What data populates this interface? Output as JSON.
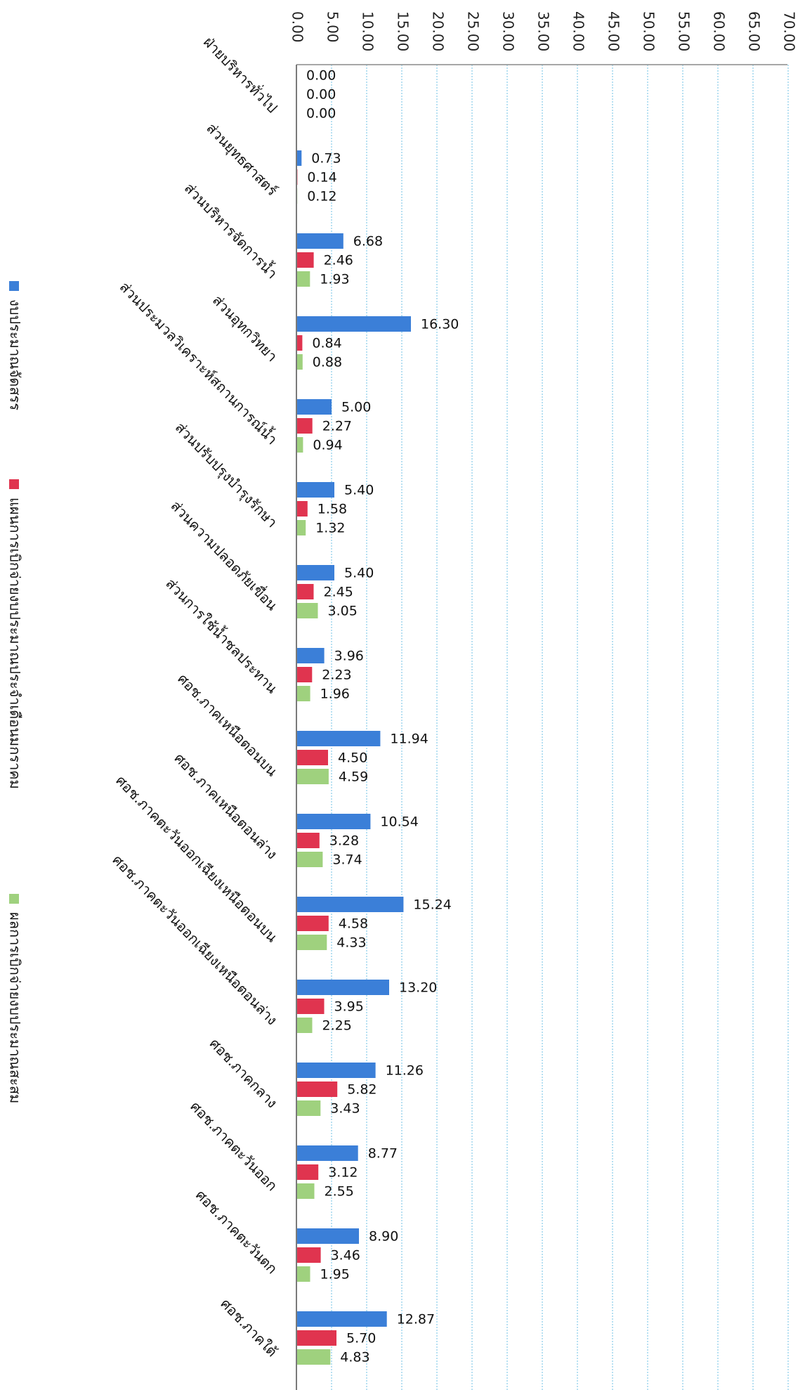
{
  "chart_data": {
    "type": "bar",
    "orientation": "horizontal",
    "categories": [
      "ฝ่ายบริหารทั่วไป",
      "ส่วนยุทธศาสตร์",
      "ส่วนบริหารจัดการน้ำ",
      "ส่วนอุทกวิทยา",
      "ส่วนประมวลวิเคราะห์สถานการณ์น้ำ",
      "ส่วนปรับปรุงบำรุงรักษา",
      "ส่วนความปลอดภัยเขื่อน",
      "ส่วนการใช้น้ำชลประทาน",
      "ศอช.ภาคเหนือตอนบน",
      "ศอช.ภาคเหนือตอนล่าง",
      "ศอช.ภาคตะวันออกเฉียงเหนือตอนบน",
      "ศอช.ภาคตะวันออกเฉียงเหนือตอนล่าง",
      "ศอช.ภาคกลาง",
      "ศอช.ภาคตะวันออก",
      "ศอช.ภาคตะวันตก",
      "ศอช.ภาคใต้"
    ],
    "series": [
      {
        "name": "งบประมาณจัดสรร",
        "color": "#3b7fd8",
        "values": [
          0.0,
          0.73,
          6.68,
          16.3,
          5.0,
          5.4,
          5.4,
          3.96,
          11.94,
          10.54,
          15.24,
          13.2,
          11.26,
          8.77,
          8.9,
          12.87
        ],
        "labels": [
          "0.00",
          "0.73",
          "6.68",
          "16.30",
          "5.00",
          "5.40",
          "5.40",
          "3.96",
          "11.94",
          "10.54",
          "15.24",
          "13.20",
          "11.26",
          "8.77",
          "8.90",
          "12.87"
        ]
      },
      {
        "name": "แผนการเบิกจ่ายงบประมาณประจำเดือนมกราคม",
        "color": "#e0344f",
        "values": [
          0.0,
          0.14,
          2.46,
          0.84,
          2.27,
          1.58,
          2.45,
          2.23,
          4.5,
          3.28,
          4.58,
          3.95,
          5.82,
          3.12,
          3.46,
          5.7
        ],
        "labels": [
          "0.00",
          "0.14",
          "2.46",
          "0.84",
          "2.27",
          "1.58",
          "2.45",
          "2.23",
          "4.50",
          "3.28",
          "4.58",
          "3.95",
          "5.82",
          "3.12",
          "3.46",
          "5.70"
        ]
      },
      {
        "name": "ผลการเบิกจ่ายงบประมาณสะสม",
        "color": "#9fd17e",
        "values": [
          0.0,
          0.12,
          1.93,
          0.88,
          0.94,
          1.32,
          3.05,
          1.96,
          4.59,
          3.74,
          4.33,
          2.25,
          3.43,
          2.55,
          1.95,
          4.83
        ],
        "labels": [
          "0.00",
          "0.12",
          "1.93",
          "0.88",
          "0.94",
          "1.32",
          "3.05",
          "1.96",
          "4.59",
          "3.74",
          "4.33",
          "2.25",
          "3.43",
          "2.55",
          "1.95",
          "4.83"
        ]
      }
    ],
    "xlim": [
      0,
      70
    ],
    "ticks": [
      "0.00",
      "5.00",
      "10.00",
      "15.00",
      "20.00",
      "25.00",
      "30.00",
      "35.00",
      "40.00",
      "45.00",
      "50.00",
      "55.00",
      "60.00",
      "65.00",
      "70.00"
    ],
    "grid": true,
    "legend": "left"
  }
}
